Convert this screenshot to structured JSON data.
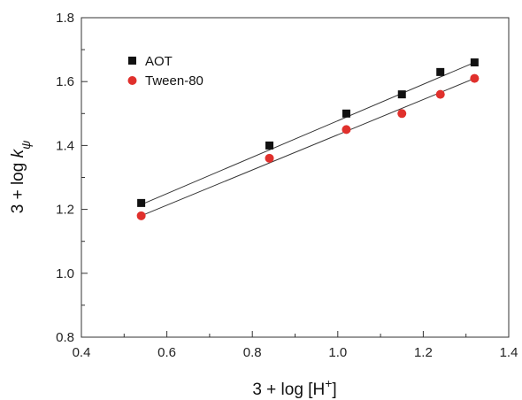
{
  "chart_data": {
    "type": "scatter",
    "xlabel": "3 + log [H",
    "xlabel_sup": "+",
    "xlabel_close": "]",
    "ylabel_prefix": "3 + log ",
    "ylabel_var": "k",
    "ylabel_sub": "ψ",
    "xlim": [
      0.4,
      1.4
    ],
    "ylim": [
      0.8,
      1.8
    ],
    "xticks": [
      0.4,
      0.6,
      0.8,
      1.0,
      1.2,
      1.4
    ],
    "xtick_labels": [
      "0.4",
      "0.6",
      "0.8",
      "1.0",
      "1.2",
      "1.4"
    ],
    "yticks": [
      0.8,
      1.0,
      1.2,
      1.4,
      1.6,
      1.8
    ],
    "ytick_labels": [
      "0.8",
      "1.0",
      "1.2",
      "1.4",
      "1.6",
      "1.8"
    ],
    "grid": false,
    "legend_position": "top-left",
    "series": [
      {
        "name": "AOT",
        "marker": "square",
        "color": "#111111",
        "x": [
          0.54,
          0.84,
          1.02,
          1.15,
          1.24,
          1.32
        ],
        "y": [
          1.22,
          1.4,
          1.5,
          1.56,
          1.63,
          1.66
        ],
        "fit": {
          "x": [
            0.54,
            1.32
          ],
          "y": [
            1.215,
            1.66
          ]
        }
      },
      {
        "name": "Tween-80",
        "marker": "circle",
        "color": "#e0302c",
        "x": [
          0.54,
          0.84,
          1.02,
          1.15,
          1.24,
          1.32
        ],
        "y": [
          1.18,
          1.36,
          1.45,
          1.5,
          1.56,
          1.61
        ],
        "fit": {
          "x": [
            0.54,
            1.32
          ],
          "y": [
            1.18,
            1.61
          ]
        }
      }
    ]
  }
}
